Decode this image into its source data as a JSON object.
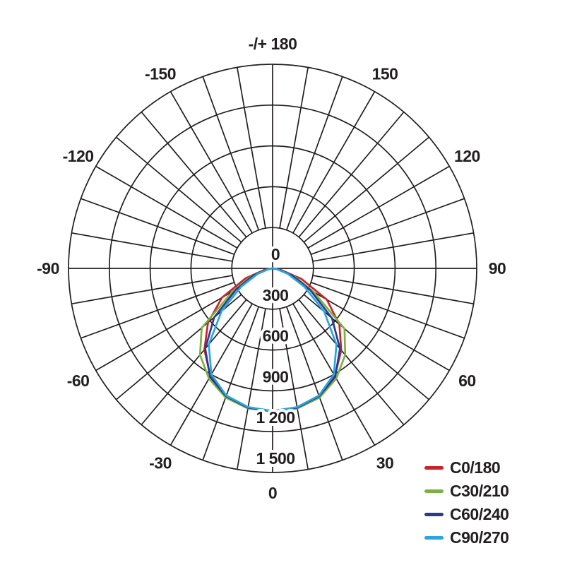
{
  "chart_data": {
    "type": "line",
    "subtype": "polar-photometric",
    "title": "",
    "angle_zero_position": "bottom",
    "angle_axis": {
      "labels": [
        {
          "deg": 180,
          "label": "-/+ 180"
        },
        {
          "deg": 150,
          "label": "150"
        },
        {
          "deg": 120,
          "label": "120"
        },
        {
          "deg": 90,
          "label": "90"
        },
        {
          "deg": 60,
          "label": "60"
        },
        {
          "deg": 30,
          "label": "30"
        },
        {
          "deg": 0,
          "label": "0"
        },
        {
          "deg": -30,
          "label": "-30"
        },
        {
          "deg": -60,
          "label": "-60"
        },
        {
          "deg": -90,
          "label": "-90"
        },
        {
          "deg": -120,
          "label": "-120"
        },
        {
          "deg": -150,
          "label": "-150"
        }
      ],
      "spoke_step_deg": 10
    },
    "radial_axis": {
      "values": [
        0,
        300,
        600,
        900,
        1200,
        1500
      ],
      "labels": [
        "0",
        "300",
        "600",
        "900",
        "1 200",
        "1 500"
      ],
      "max": 1500,
      "grid": true
    },
    "sample_angles_deg": [
      -90,
      -80,
      -70,
      -60,
      -50,
      -40,
      -30,
      -20,
      -10,
      0,
      10,
      20,
      30,
      40,
      50,
      60,
      70,
      80,
      90
    ],
    "series": [
      {
        "name": "C0/180",
        "color": "#c9232b",
        "values": [
          0,
          60,
          210,
          430,
          620,
          780,
          915,
          1000,
          1040,
          1050,
          1040,
          1000,
          915,
          785,
          640,
          460,
          225,
          60,
          0
        ]
      },
      {
        "name": "C30/210",
        "color": "#79b242",
        "values": [
          0,
          45,
          165,
          340,
          680,
          830,
          935,
          1010,
          1045,
          1052,
          1045,
          1010,
          935,
          830,
          690,
          350,
          170,
          45,
          0
        ]
      },
      {
        "name": "C60/240",
        "color": "#2c3a8d",
        "values": [
          0,
          40,
          150,
          310,
          560,
          770,
          920,
          1000,
          1040,
          1050,
          1040,
          1000,
          920,
          770,
          570,
          320,
          155,
          40,
          0
        ]
      },
      {
        "name": "C90/270",
        "color": "#2aa5df",
        "values": [
          0,
          30,
          115,
          265,
          490,
          730,
          900,
          995,
          1035,
          1048,
          1035,
          995,
          900,
          730,
          495,
          270,
          120,
          30,
          0
        ]
      }
    ],
    "legend_position": "bottom-right",
    "grid_color": "#231f20",
    "text_color": "#231f20",
    "background_color": "#ffffff"
  },
  "legend": {
    "items": [
      {
        "label": "C0/180",
        "color": "#c9232b"
      },
      {
        "label": "C30/210",
        "color": "#79b242"
      },
      {
        "label": "C60/240",
        "color": "#2c3a8d"
      },
      {
        "label": "C90/270",
        "color": "#2aa5df"
      }
    ]
  }
}
